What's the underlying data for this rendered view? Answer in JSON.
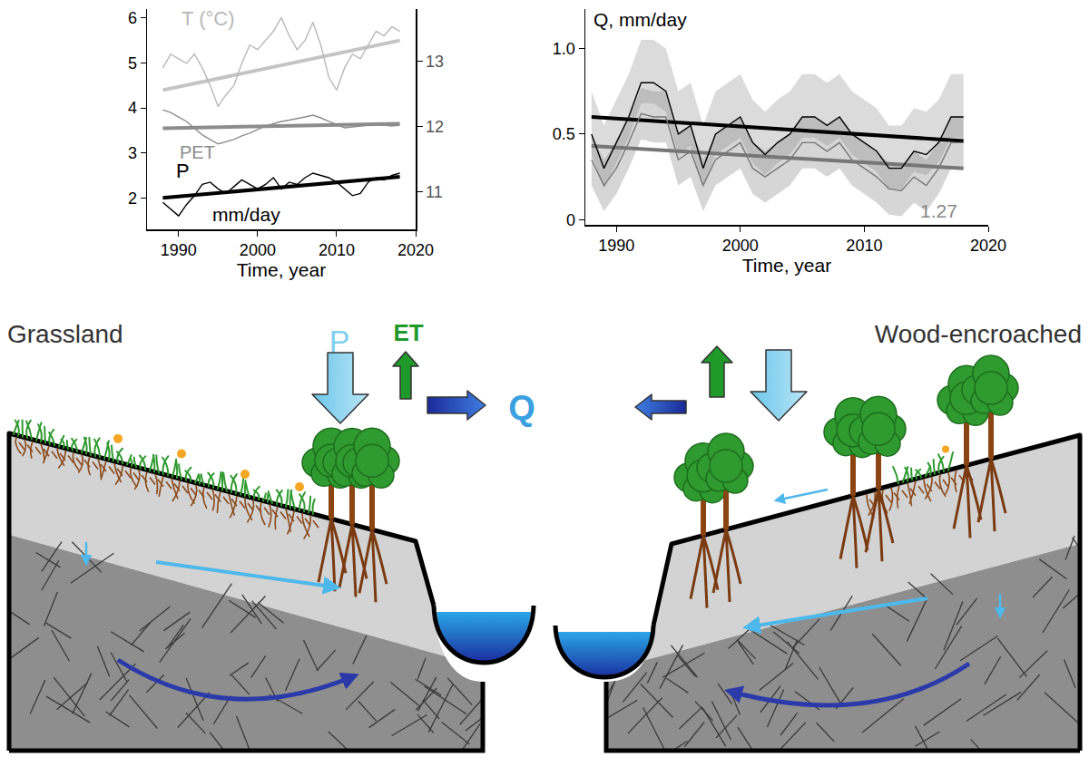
{
  "chart_data": [
    {
      "type": "line",
      "x": [
        1988,
        1989,
        1990,
        1991,
        1992,
        1993,
        1994,
        1995,
        1996,
        1997,
        1998,
        1999,
        2000,
        2001,
        2002,
        2003,
        2004,
        2005,
        2006,
        2007,
        2008,
        2009,
        2010,
        2011,
        2012,
        2013,
        2014,
        2015,
        2016,
        2017,
        2018
      ],
      "xlim": [
        1986,
        2020
      ],
      "xticks": [
        1990,
        2000,
        2010,
        2020
      ],
      "x_label": "Time, year",
      "ylim": [
        1.3,
        6.2
      ],
      "yticks": [
        2,
        3,
        4,
        5,
        6
      ],
      "y2lim": [
        10.43,
        13.8
      ],
      "y2ticks": [
        11,
        12,
        13
      ],
      "grid": false,
      "series": [
        {
          "name": "T (°C)",
          "color": "#b8b8b8",
          "axis": "y2",
          "values": [
            12.9,
            13.11,
            13.04,
            12.97,
            13.11,
            12.9,
            12.63,
            12.31,
            12.49,
            12.63,
            12.97,
            13.25,
            13.18,
            13.32,
            13.46,
            13.67,
            13.39,
            13.18,
            13.32,
            13.6,
            13.25,
            12.76,
            12.56,
            12.9,
            13.11,
            13.04,
            13.25,
            13.46,
            13.39,
            13.53,
            13.46
          ]
        },
        {
          "name": "PET",
          "color": "#8c8c8c",
          "values": [
            3.96,
            3.9,
            3.8,
            3.7,
            3.55,
            3.4,
            3.3,
            3.2,
            3.25,
            3.3,
            3.38,
            3.44,
            3.52,
            3.6,
            3.65,
            3.7,
            3.73,
            3.76,
            3.8,
            3.84,
            3.78,
            3.7,
            3.63,
            3.56,
            3.58,
            3.6,
            3.62,
            3.64,
            3.62,
            3.6,
            3.62
          ]
        },
        {
          "name": "P",
          "color": "#000000",
          "values": [
            1.9,
            1.75,
            1.6,
            1.85,
            2.05,
            2.3,
            2.35,
            2.2,
            2.1,
            2.25,
            2.4,
            2.3,
            2.2,
            2.3,
            2.45,
            2.2,
            2.35,
            2.3,
            2.45,
            2.55,
            2.5,
            2.45,
            2.35,
            2.2,
            2.05,
            2.1,
            2.35,
            2.45,
            2.4,
            2.5,
            2.55
          ]
        }
      ],
      "trends": [
        {
          "color": "#c4c4c4",
          "axis": "y2",
          "x": [
            1988,
            2018
          ],
          "values": [
            12.56,
            13.32
          ]
        },
        {
          "color": "#8c8c8c",
          "x": [
            1988,
            2018
          ],
          "values": [
            3.55,
            3.65
          ]
        },
        {
          "color": "#000000",
          "x": [
            1988,
            2018
          ],
          "values": [
            2.0,
            2.47
          ]
        }
      ],
      "annotations": [
        "mm/day"
      ]
    },
    {
      "type": "line",
      "x": [
        1988,
        1989,
        1990,
        1991,
        1992,
        1993,
        1994,
        1995,
        1996,
        1997,
        1998,
        1999,
        2000,
        2001,
        2002,
        2003,
        2004,
        2005,
        2006,
        2007,
        2008,
        2009,
        2010,
        2011,
        2012,
        2013,
        2014,
        2015,
        2016,
        2017,
        2018
      ],
      "xlim": [
        1987.5,
        2020
      ],
      "xticks": [
        1990,
        2000,
        2010,
        2020
      ],
      "x_label": "Time, year",
      "ylim": [
        -0.03,
        1.23
      ],
      "yticks": [
        0,
        0.5,
        {
          "value": 1,
          "label": "1.0"
        }
      ],
      "grid": false,
      "series": [
        {
          "color": "#000000",
          "values": [
            0.5,
            0.3,
            0.45,
            0.6,
            0.8,
            0.8,
            0.75,
            0.5,
            0.55,
            0.3,
            0.5,
            0.55,
            0.6,
            0.45,
            0.38,
            0.45,
            0.5,
            0.6,
            0.6,
            0.55,
            0.6,
            0.5,
            0.45,
            0.4,
            0.3,
            0.3,
            0.4,
            0.38,
            0.45,
            0.6,
            0.6
          ],
          "lower": [
            0.38,
            0.18,
            0.33,
            0.48,
            0.68,
            0.68,
            0.63,
            0.38,
            0.43,
            0.18,
            0.38,
            0.43,
            0.48,
            0.33,
            0.26,
            0.33,
            0.38,
            0.48,
            0.48,
            0.43,
            0.48,
            0.38,
            0.33,
            0.28,
            0.18,
            0.18,
            0.28,
            0.26,
            0.33,
            0.48,
            0.48
          ],
          "upper": [
            0.75,
            0.55,
            0.7,
            0.85,
            1.05,
            1.05,
            1.0,
            0.75,
            0.8,
            0.55,
            0.75,
            0.8,
            0.85,
            0.7,
            0.63,
            0.7,
            0.75,
            0.85,
            0.85,
            0.8,
            0.85,
            0.75,
            0.7,
            0.65,
            0.55,
            0.55,
            0.65,
            0.63,
            0.7,
            0.85,
            0.85
          ]
        },
        {
          "color": "#777777",
          "values": [
            0.35,
            0.2,
            0.3,
            0.45,
            0.62,
            0.6,
            0.6,
            0.35,
            0.4,
            0.2,
            0.35,
            0.4,
            0.45,
            0.3,
            0.25,
            0.3,
            0.35,
            0.45,
            0.45,
            0.4,
            0.45,
            0.35,
            0.3,
            0.25,
            0.18,
            0.17,
            0.25,
            0.2,
            0.3,
            0.45,
            0.45
          ],
          "lower": [
            0.2,
            0.05,
            0.15,
            0.3,
            0.47,
            0.45,
            0.45,
            0.2,
            0.25,
            0.05,
            0.2,
            0.25,
            0.3,
            0.15,
            0.1,
            0.15,
            0.2,
            0.3,
            0.3,
            0.25,
            0.3,
            0.2,
            0.15,
            0.1,
            0.03,
            0.02,
            0.1,
            0.05,
            0.15,
            0.3,
            0.3
          ],
          "upper": [
            0.5,
            0.35,
            0.45,
            0.6,
            0.77,
            0.75,
            0.75,
            0.5,
            0.55,
            0.35,
            0.5,
            0.55,
            0.6,
            0.45,
            0.4,
            0.45,
            0.5,
            0.6,
            0.6,
            0.55,
            0.6,
            0.5,
            0.45,
            0.4,
            0.33,
            0.32,
            0.4,
            0.35,
            0.45,
            0.6,
            0.6
          ]
        }
      ],
      "trends": [
        {
          "color": "#000000",
          "x": [
            1988,
            2018
          ],
          "values": [
            0.6,
            0.46
          ]
        },
        {
          "color": "#777777",
          "x": [
            1988,
            2018
          ],
          "values": [
            0.43,
            0.3
          ]
        }
      ],
      "annotations": [
        "Q, mm/day",
        "1.27"
      ]
    }
  ],
  "diagram": {
    "left_label": "Grassland",
    "right_label": "Wood-encroached",
    "fluxes": {
      "precipitation": "P",
      "evapotranspiration": "ET",
      "discharge": "Q"
    }
  }
}
